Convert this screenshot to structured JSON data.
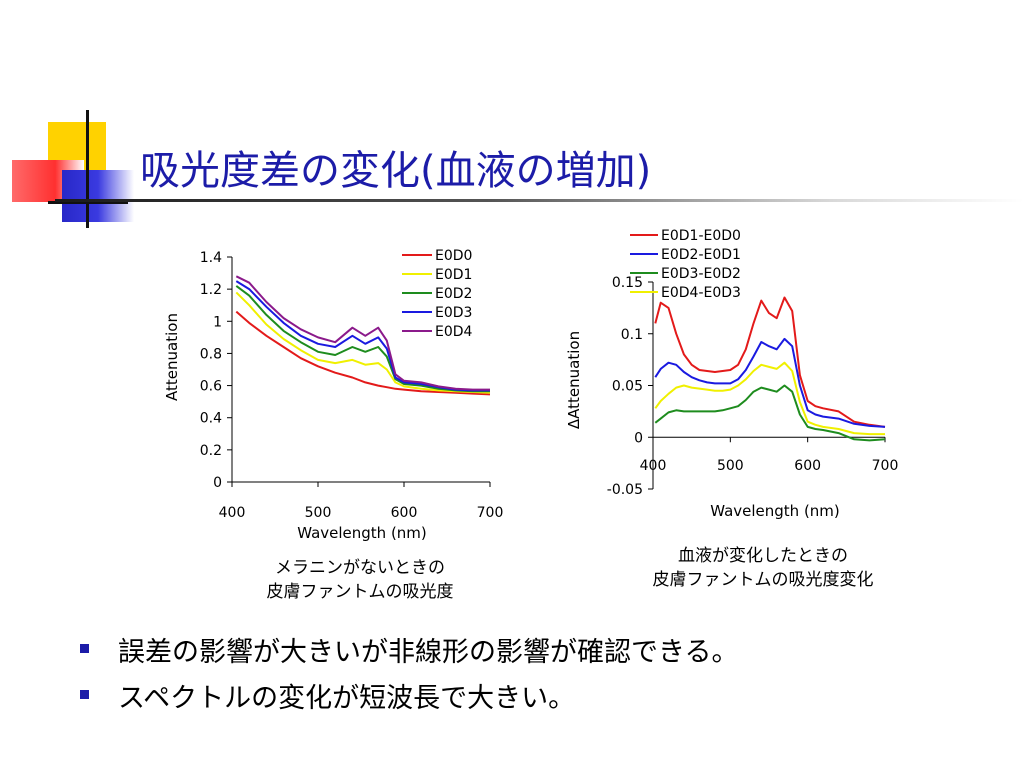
{
  "slide": {
    "title": "吸光度差の変化(血液の増加)",
    "caption_left_1": "メラニンがないときの",
    "caption_left_2": "皮膚ファントムの吸光度",
    "caption_right_1": "血液が変化したときの",
    "caption_right_2": "皮膚ファントムの吸光度変化",
    "bullets": [
      "誤差の影響が大きいが非線形の影響が確認できる。",
      "スペクトルの変化が短波長で大きい。"
    ],
    "accent_color": "#1c1ca8"
  },
  "chart_data": [
    {
      "type": "line",
      "title": "",
      "xlabel": "Wavelength (nm)",
      "ylabel": "Attenuation",
      "xlim": [
        400,
        700
      ],
      "ylim": [
        0,
        1.4
      ],
      "xticks": [
        "400",
        "500",
        "600",
        "700"
      ],
      "yticks": [
        "0",
        "0.2",
        "0.4",
        "0.6",
        "0.8",
        "1",
        "1.2",
        "1.4"
      ],
      "grid": false,
      "legend_position": "top-right",
      "x": [
        405,
        420,
        440,
        460,
        480,
        500,
        520,
        540,
        555,
        570,
        580,
        590,
        600,
        620,
        640,
        660,
        680,
        700
      ],
      "series": [
        {
          "name": "E0D0",
          "color": "#e31a1a",
          "values": [
            1.06,
            0.99,
            0.91,
            0.84,
            0.77,
            0.72,
            0.68,
            0.65,
            0.62,
            0.6,
            0.59,
            0.58,
            0.575,
            0.565,
            0.56,
            0.555,
            0.55,
            0.545
          ]
        },
        {
          "name": "E0D1",
          "color": "#f0f000",
          "values": [
            1.18,
            1.1,
            0.98,
            0.89,
            0.82,
            0.76,
            0.74,
            0.76,
            0.73,
            0.74,
            0.7,
            0.62,
            0.595,
            0.58,
            0.57,
            0.565,
            0.56,
            0.555
          ]
        },
        {
          "name": "E0D2",
          "color": "#1e8c1e",
          "values": [
            1.22,
            1.16,
            1.04,
            0.94,
            0.87,
            0.81,
            0.79,
            0.84,
            0.81,
            0.84,
            0.78,
            0.64,
            0.61,
            0.6,
            0.58,
            0.57,
            0.565,
            0.565
          ]
        },
        {
          "name": "E0D3",
          "color": "#1a1ae0",
          "values": [
            1.25,
            1.2,
            1.09,
            0.99,
            0.91,
            0.86,
            0.84,
            0.91,
            0.86,
            0.9,
            0.83,
            0.65,
            0.62,
            0.61,
            0.59,
            0.575,
            0.57,
            0.57
          ]
        },
        {
          "name": "E0D4",
          "color": "#8b1a8b",
          "values": [
            1.28,
            1.24,
            1.12,
            1.02,
            0.95,
            0.9,
            0.87,
            0.96,
            0.91,
            0.96,
            0.88,
            0.67,
            0.63,
            0.62,
            0.595,
            0.58,
            0.575,
            0.575
          ]
        }
      ]
    },
    {
      "type": "line",
      "title": "",
      "xlabel": "Wavelength (nm)",
      "ylabel": "ΔAttenuation",
      "xlim": [
        400,
        700
      ],
      "ylim": [
        -0.05,
        0.15
      ],
      "xticks": [
        "400",
        "500",
        "600",
        "700"
      ],
      "yticks": [
        "-0.05",
        "0",
        "0.05",
        "0.1",
        "0.15"
      ],
      "grid": false,
      "legend_position": "top-left",
      "x": [
        403,
        410,
        420,
        430,
        440,
        450,
        460,
        470,
        480,
        490,
        500,
        510,
        520,
        530,
        540,
        550,
        560,
        570,
        580,
        590,
        600,
        610,
        620,
        640,
        660,
        680,
        700
      ],
      "series": [
        {
          "name": "E0D1-E0D0",
          "color": "#e31a1a",
          "values": [
            0.11,
            0.13,
            0.125,
            0.1,
            0.08,
            0.07,
            0.065,
            0.064,
            0.063,
            0.064,
            0.065,
            0.07,
            0.085,
            0.11,
            0.132,
            0.12,
            0.115,
            0.135,
            0.122,
            0.06,
            0.035,
            0.03,
            0.028,
            0.025,
            0.015,
            0.012,
            0.01
          ]
        },
        {
          "name": "E0D2-E0D1",
          "color": "#1a1ae0",
          "values": [
            0.058,
            0.066,
            0.072,
            0.07,
            0.063,
            0.058,
            0.055,
            0.053,
            0.052,
            0.052,
            0.052,
            0.056,
            0.065,
            0.078,
            0.092,
            0.088,
            0.085,
            0.095,
            0.088,
            0.05,
            0.026,
            0.022,
            0.02,
            0.018,
            0.013,
            0.011,
            0.01
          ]
        },
        {
          "name": "E0D3-E0D2",
          "color": "#1e8c1e",
          "values": [
            0.014,
            0.018,
            0.024,
            0.026,
            0.025,
            0.025,
            0.025,
            0.025,
            0.025,
            0.026,
            0.028,
            0.03,
            0.036,
            0.044,
            0.048,
            0.046,
            0.044,
            0.05,
            0.044,
            0.022,
            0.01,
            0.008,
            0.007,
            0.004,
            -0.002,
            -0.003,
            -0.002
          ]
        },
        {
          "name": "E0D4-E0D3",
          "color": "#f0f000",
          "values": [
            0.028,
            0.035,
            0.042,
            0.048,
            0.05,
            0.048,
            0.047,
            0.046,
            0.045,
            0.045,
            0.046,
            0.05,
            0.056,
            0.064,
            0.07,
            0.068,
            0.066,
            0.072,
            0.064,
            0.034,
            0.015,
            0.012,
            0.01,
            0.008,
            0.004,
            0.003,
            0.003
          ]
        }
      ]
    }
  ]
}
